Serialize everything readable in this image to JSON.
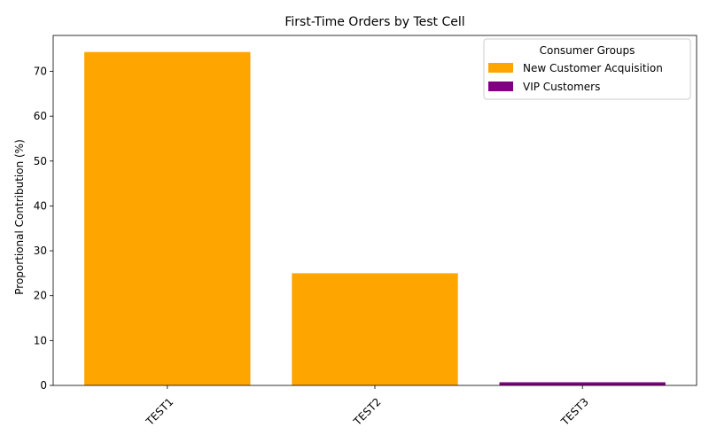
{
  "chart_data": {
    "type": "bar",
    "title": "First-Time Orders by Test Cell",
    "xlabel": "",
    "ylabel": "Proportional Contribution (%)",
    "categories": [
      "TEST1",
      "TEST2",
      "TEST3"
    ],
    "values": [
      74.3,
      25.0,
      0.7
    ],
    "bar_colors": [
      "#FFA500",
      "#FFA500",
      "#800080"
    ],
    "ylim": [
      0,
      78
    ],
    "yticks": [
      0,
      10,
      20,
      30,
      40,
      50,
      60,
      70
    ],
    "xtick_rotation_deg": 45,
    "grid": false,
    "legend": {
      "title": "Consumer Groups",
      "placement": "top-right",
      "entries": [
        {
          "label": "New Customer Acquisition",
          "color": "#FFA500"
        },
        {
          "label": "VIP Customers",
          "color": "#800080"
        }
      ]
    }
  }
}
